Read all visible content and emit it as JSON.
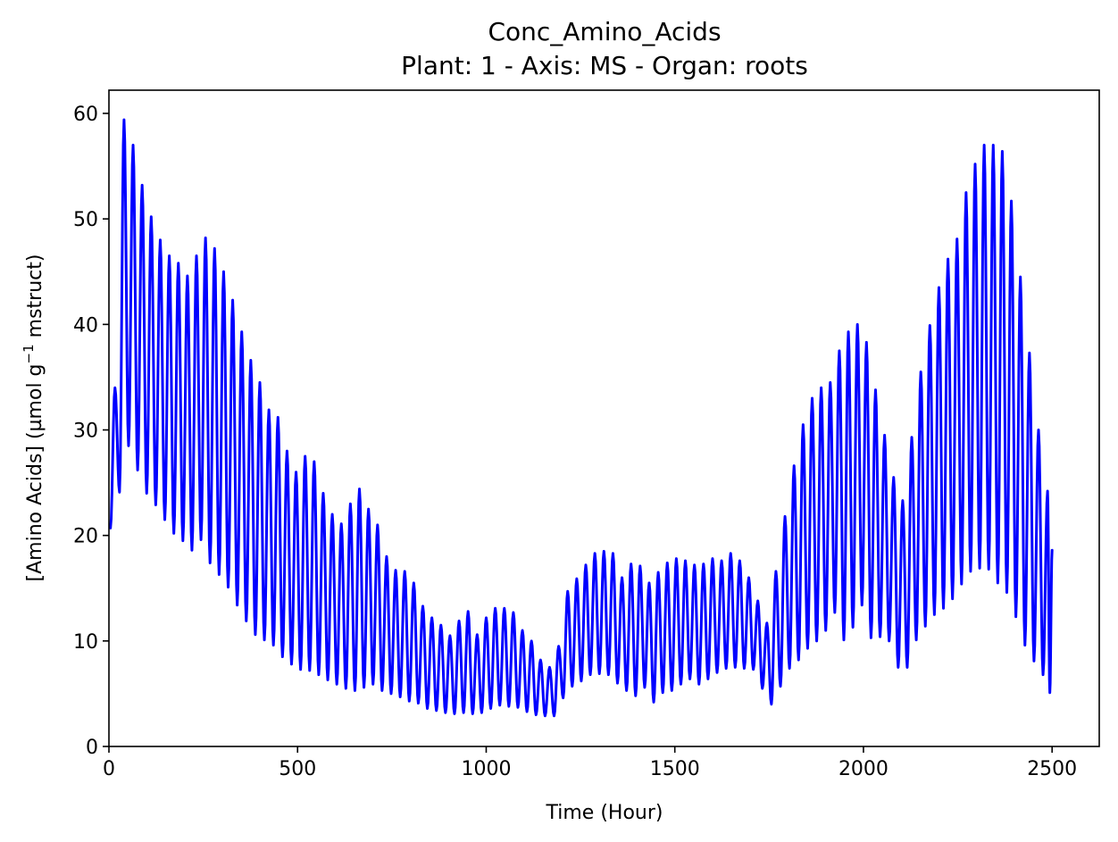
{
  "chart_data": {
    "type": "line",
    "title": "Conc_Amino_Acids",
    "subtitle": "Plant: 1 - Axis: MS - Organ: roots",
    "xlabel": "Time (Hour)",
    "ylabel_main": "[Amino Acids] (µmol g",
    "ylabel_sup": "−1",
    "ylabel_tail": " mstruct)",
    "xlim": [
      0,
      2625
    ],
    "ylim": [
      0,
      62.2
    ],
    "xticks": [
      0,
      500,
      1000,
      1500,
      2000,
      2500
    ],
    "yticks": [
      0,
      10,
      20,
      30,
      40,
      50,
      60
    ],
    "grid": false,
    "series": [
      {
        "color": "#0000ff",
        "period_hours": 24,
        "x_end": 2500,
        "start_value": 21.0,
        "end_value": 18.6,
        "peaks": [
          [
            16,
            34.0
          ],
          [
            40,
            59.4
          ],
          [
            64,
            57.0
          ],
          [
            88,
            53.2
          ],
          [
            112,
            50.2
          ],
          [
            136,
            48.0
          ],
          [
            160,
            46.5
          ],
          [
            184,
            45.8
          ],
          [
            208,
            44.6
          ],
          [
            232,
            46.5
          ],
          [
            256,
            48.2
          ],
          [
            280,
            47.2
          ],
          [
            304,
            45.0
          ],
          [
            328,
            42.3
          ],
          [
            352,
            39.3
          ],
          [
            376,
            36.6
          ],
          [
            400,
            34.5
          ],
          [
            424,
            31.9
          ],
          [
            448,
            31.2
          ],
          [
            472,
            28.0
          ],
          [
            496,
            26.0
          ],
          [
            520,
            27.5
          ],
          [
            544,
            27.0
          ],
          [
            568,
            24.0
          ],
          [
            592,
            22.0
          ],
          [
            616,
            21.1
          ],
          [
            640,
            23.0
          ],
          [
            664,
            24.4
          ],
          [
            688,
            22.5
          ],
          [
            712,
            21.0
          ],
          [
            736,
            18.0
          ],
          [
            760,
            16.7
          ],
          [
            784,
            16.6
          ],
          [
            808,
            15.5
          ],
          [
            832,
            13.3
          ],
          [
            856,
            12.2
          ],
          [
            880,
            11.5
          ],
          [
            904,
            10.5
          ],
          [
            928,
            11.9
          ],
          [
            952,
            12.8
          ],
          [
            976,
            10.6
          ],
          [
            1000,
            12.2
          ],
          [
            1024,
            13.1
          ],
          [
            1048,
            13.1
          ],
          [
            1072,
            12.7
          ],
          [
            1096,
            11.0
          ],
          [
            1120,
            10.0
          ],
          [
            1144,
            8.2
          ],
          [
            1168,
            7.5
          ],
          [
            1192,
            9.5
          ],
          [
            1216,
            14.7
          ],
          [
            1240,
            15.9
          ],
          [
            1264,
            17.2
          ],
          [
            1288,
            18.3
          ],
          [
            1312,
            18.5
          ],
          [
            1336,
            18.3
          ],
          [
            1360,
            16.0
          ],
          [
            1384,
            17.3
          ],
          [
            1408,
            17.1
          ],
          [
            1432,
            15.5
          ],
          [
            1456,
            16.5
          ],
          [
            1480,
            17.4
          ],
          [
            1504,
            17.8
          ],
          [
            1528,
            17.6
          ],
          [
            1552,
            17.2
          ],
          [
            1576,
            17.3
          ],
          [
            1600,
            17.8
          ],
          [
            1624,
            17.6
          ],
          [
            1648,
            18.3
          ],
          [
            1672,
            17.6
          ],
          [
            1696,
            16.0
          ],
          [
            1720,
            13.8
          ],
          [
            1744,
            11.7
          ],
          [
            1768,
            16.6
          ],
          [
            1792,
            21.8
          ],
          [
            1816,
            26.6
          ],
          [
            1840,
            30.5
          ],
          [
            1864,
            33.0
          ],
          [
            1888,
            34.0
          ],
          [
            1912,
            34.5
          ],
          [
            1936,
            37.5
          ],
          [
            1960,
            39.3
          ],
          [
            1984,
            40.0
          ],
          [
            2008,
            38.3
          ],
          [
            2032,
            33.8
          ],
          [
            2056,
            29.5
          ],
          [
            2080,
            25.5
          ],
          [
            2104,
            23.3
          ],
          [
            2128,
            29.3
          ],
          [
            2152,
            35.5
          ],
          [
            2176,
            39.9
          ],
          [
            2200,
            43.5
          ],
          [
            2224,
            46.2
          ],
          [
            2248,
            48.1
          ],
          [
            2272,
            52.5
          ],
          [
            2296,
            55.2
          ],
          [
            2320,
            57.0
          ],
          [
            2344,
            57.0
          ],
          [
            2368,
            56.4
          ],
          [
            2392,
            51.7
          ],
          [
            2416,
            44.5
          ],
          [
            2440,
            37.3
          ],
          [
            2464,
            30.0
          ],
          [
            2488,
            24.2
          ]
        ],
        "troughs": [
          [
            4,
            20.7
          ],
          [
            28,
            24.1
          ],
          [
            52,
            28.5
          ],
          [
            76,
            26.2
          ],
          [
            100,
            24.0
          ],
          [
            124,
            22.9
          ],
          [
            148,
            21.5
          ],
          [
            172,
            20.2
          ],
          [
            196,
            19.5
          ],
          [
            220,
            18.6
          ],
          [
            244,
            19.6
          ],
          [
            268,
            17.4
          ],
          [
            292,
            16.3
          ],
          [
            316,
            15.1
          ],
          [
            340,
            13.4
          ],
          [
            364,
            11.9
          ],
          [
            388,
            10.6
          ],
          [
            412,
            10.1
          ],
          [
            436,
            9.6
          ],
          [
            460,
            8.5
          ],
          [
            484,
            7.8
          ],
          [
            508,
            7.3
          ],
          [
            532,
            7.2
          ],
          [
            556,
            6.8
          ],
          [
            580,
            6.3
          ],
          [
            604,
            5.9
          ],
          [
            628,
            5.5
          ],
          [
            652,
            5.3
          ],
          [
            676,
            5.6
          ],
          [
            700,
            5.9
          ],
          [
            724,
            5.3
          ],
          [
            748,
            5.0
          ],
          [
            772,
            4.7
          ],
          [
            796,
            4.3
          ],
          [
            820,
            4.1
          ],
          [
            844,
            3.6
          ],
          [
            868,
            3.4
          ],
          [
            892,
            3.2
          ],
          [
            916,
            3.1
          ],
          [
            940,
            3.2
          ],
          [
            964,
            3.1
          ],
          [
            988,
            3.2
          ],
          [
            1012,
            3.6
          ],
          [
            1036,
            3.9
          ],
          [
            1060,
            3.8
          ],
          [
            1084,
            3.7
          ],
          [
            1108,
            3.3
          ],
          [
            1132,
            3.0
          ],
          [
            1156,
            2.9
          ],
          [
            1180,
            2.9
          ],
          [
            1204,
            4.6
          ],
          [
            1228,
            5.7
          ],
          [
            1252,
            6.2
          ],
          [
            1276,
            6.8
          ],
          [
            1300,
            6.9
          ],
          [
            1324,
            6.8
          ],
          [
            1348,
            6.0
          ],
          [
            1372,
            5.3
          ],
          [
            1396,
            4.8
          ],
          [
            1420,
            5.6
          ],
          [
            1444,
            4.2
          ],
          [
            1468,
            5.1
          ],
          [
            1492,
            5.3
          ],
          [
            1516,
            5.9
          ],
          [
            1540,
            6.4
          ],
          [
            1564,
            5.9
          ],
          [
            1588,
            6.4
          ],
          [
            1612,
            7.0
          ],
          [
            1636,
            7.4
          ],
          [
            1660,
            7.5
          ],
          [
            1684,
            7.4
          ],
          [
            1708,
            7.3
          ],
          [
            1732,
            5.5
          ],
          [
            1756,
            4.0
          ],
          [
            1780,
            5.7
          ],
          [
            1804,
            7.4
          ],
          [
            1828,
            8.2
          ],
          [
            1852,
            9.3
          ],
          [
            1876,
            10.0
          ],
          [
            1900,
            11.0
          ],
          [
            1924,
            12.7
          ],
          [
            1948,
            10.1
          ],
          [
            1972,
            11.3
          ],
          [
            1996,
            13.4
          ],
          [
            2020,
            10.3
          ],
          [
            2044,
            10.4
          ],
          [
            2068,
            10.0
          ],
          [
            2092,
            7.5
          ],
          [
            2116,
            7.5
          ],
          [
            2140,
            10.1
          ],
          [
            2164,
            11.4
          ],
          [
            2188,
            12.5
          ],
          [
            2212,
            13.1
          ],
          [
            2236,
            14.0
          ],
          [
            2260,
            15.4
          ],
          [
            2284,
            16.6
          ],
          [
            2308,
            16.9
          ],
          [
            2332,
            16.8
          ],
          [
            2356,
            15.5
          ],
          [
            2380,
            14.6
          ],
          [
            2404,
            12.3
          ],
          [
            2428,
            9.6
          ],
          [
            2452,
            8.1
          ],
          [
            2476,
            6.8
          ],
          [
            2494,
            5.1
          ]
        ]
      }
    ]
  }
}
